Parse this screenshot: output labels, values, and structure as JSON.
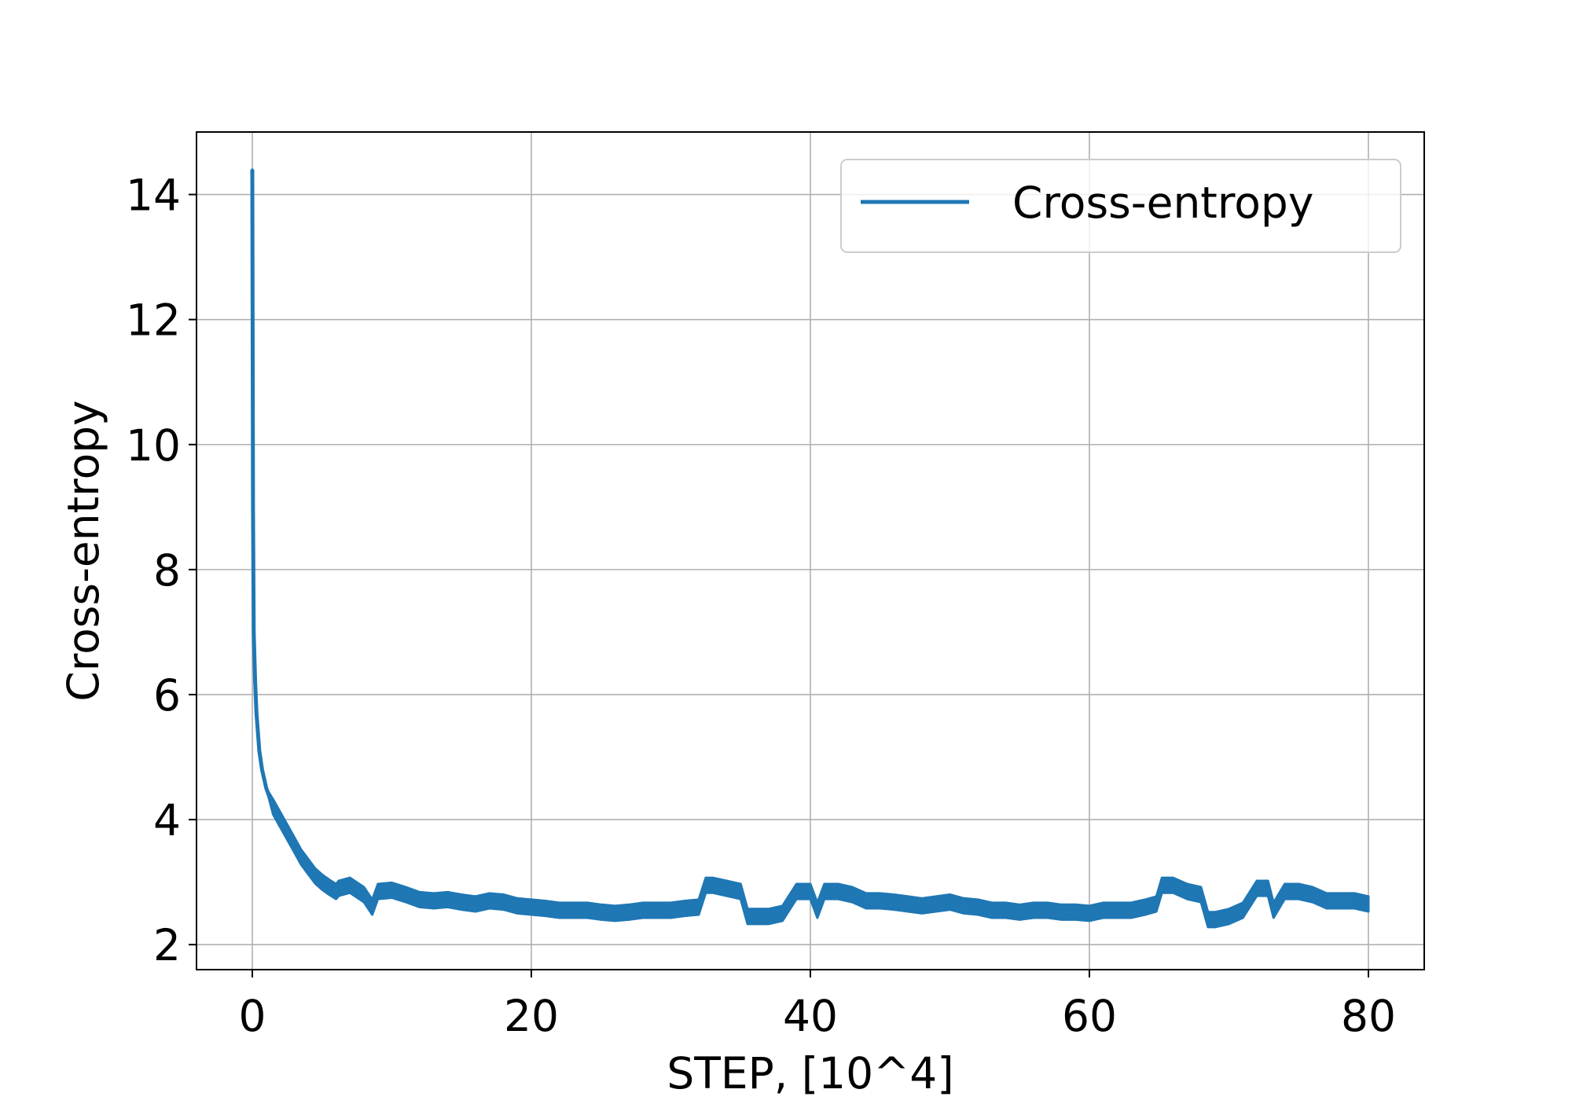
{
  "chart_data": {
    "type": "line",
    "title": "",
    "xlabel": "STEP, [10^4]",
    "ylabel": "Cross-entropy",
    "xlim": [
      -4,
      84
    ],
    "ylim": [
      1.6,
      15.0
    ],
    "xticks": [
      0,
      20,
      40,
      60,
      80
    ],
    "xtick_labels": [
      "0",
      "20",
      "40",
      "60",
      "80"
    ],
    "yticks": [
      2,
      4,
      6,
      8,
      10,
      12,
      14
    ],
    "ytick_labels": [
      "2",
      "4",
      "6",
      "8",
      "10",
      "12",
      "14"
    ],
    "grid": true,
    "legend": {
      "position": "top-right",
      "entries": [
        "Cross-entropy"
      ]
    },
    "series": [
      {
        "name": "Cross-entropy",
        "color": "#1f77b4",
        "band_halfwidth": 0.12,
        "x": [
          0,
          0.05,
          0.1,
          0.2,
          0.3,
          0.5,
          0.7,
          1,
          1.5,
          2,
          2.5,
          3,
          3.5,
          4,
          4.5,
          5,
          5.5,
          6,
          6.2,
          7,
          8,
          8.6,
          9,
          10,
          11,
          12,
          13,
          14,
          15,
          16,
          17,
          18,
          19,
          20,
          21,
          22,
          23,
          24,
          25,
          26,
          27,
          28,
          29,
          30,
          31,
          32,
          32.5,
          33,
          34,
          35,
          35.5,
          36,
          37,
          38,
          39,
          40,
          40.5,
          41,
          42,
          43,
          44,
          45,
          46,
          47,
          48,
          49,
          50,
          51,
          52,
          53,
          54,
          55,
          56,
          57,
          58,
          59,
          60,
          61,
          62,
          63,
          64,
          64.8,
          65.2,
          66,
          67,
          68,
          68.5,
          69,
          70,
          71,
          72,
          72.8,
          73.2,
          74,
          75,
          76,
          77,
          78,
          79,
          80
        ],
        "y": [
          14.4,
          9.0,
          7.0,
          6.2,
          5.7,
          5.1,
          4.8,
          4.5,
          4.2,
          4.0,
          3.8,
          3.6,
          3.4,
          3.25,
          3.1,
          3.0,
          2.92,
          2.85,
          2.9,
          2.95,
          2.8,
          2.6,
          2.85,
          2.87,
          2.8,
          2.72,
          2.7,
          2.72,
          2.68,
          2.65,
          2.7,
          2.68,
          2.62,
          2.6,
          2.58,
          2.55,
          2.55,
          2.55,
          2.52,
          2.5,
          2.52,
          2.55,
          2.55,
          2.55,
          2.58,
          2.6,
          2.95,
          2.95,
          2.9,
          2.85,
          2.45,
          2.45,
          2.45,
          2.5,
          2.85,
          2.85,
          2.55,
          2.85,
          2.85,
          2.8,
          2.7,
          2.7,
          2.68,
          2.65,
          2.62,
          2.65,
          2.68,
          2.62,
          2.6,
          2.55,
          2.55,
          2.52,
          2.55,
          2.55,
          2.52,
          2.52,
          2.5,
          2.55,
          2.55,
          2.55,
          2.6,
          2.65,
          2.95,
          2.95,
          2.85,
          2.8,
          2.4,
          2.4,
          2.45,
          2.55,
          2.9,
          2.9,
          2.55,
          2.85,
          2.85,
          2.8,
          2.7,
          2.7,
          2.7,
          2.65
        ]
      }
    ]
  }
}
